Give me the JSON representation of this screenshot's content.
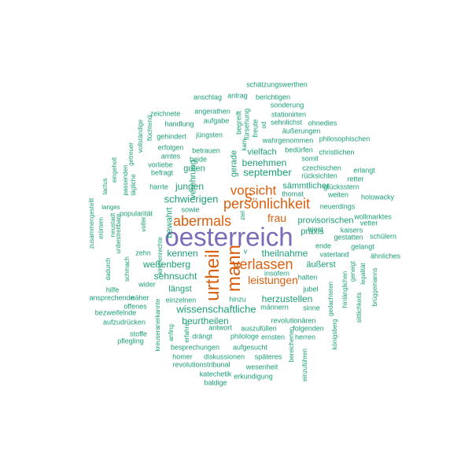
{
  "colors": {
    "main": "#7b6bb8",
    "orange": "#d95f0e",
    "teal": "#1b9e77",
    "background": "#ffffff"
  },
  "words": [
    {
      "text": "oesterreich",
      "color": "main"
    },
    {
      "text": "urtheil",
      "color": "orange"
    },
    {
      "text": "mann",
      "color": "orange"
    },
    {
      "text": "verlassen",
      "color": "orange"
    },
    {
      "text": "abermals",
      "color": "orange"
    },
    {
      "text": "persönlichkeit",
      "color": "orange"
    },
    {
      "text": "vorsicht",
      "color": "orange"
    },
    {
      "text": "s",
      "color": "orange"
    },
    {
      "text": "leistungen",
      "color": "orange"
    },
    {
      "text": "frau",
      "color": "orange"
    },
    {
      "text": "schwierigen",
      "color": "teal"
    },
    {
      "text": "september",
      "color": "teal"
    },
    {
      "text": "wissenschaftliche",
      "color": "teal"
    },
    {
      "text": "herzustellen",
      "color": "teal"
    },
    {
      "text": "beurtheilen",
      "color": "teal"
    },
    {
      "text": "sehnsucht",
      "color": "teal"
    },
    {
      "text": "kennen",
      "color": "teal"
    },
    {
      "text": "weßenberg",
      "color": "teal"
    },
    {
      "text": "theilnahme",
      "color": "teal"
    },
    {
      "text": "benehmen",
      "color": "teal"
    },
    {
      "text": "jungen",
      "color": "teal"
    },
    {
      "text": "guten",
      "color": "teal"
    },
    {
      "text": "verehrung",
      "color": "teal"
    },
    {
      "text": "längst",
      "color": "teal"
    },
    {
      "text": "provisorischen",
      "color": "teal"
    },
    {
      "text": "sämmtlicher",
      "color": "teal"
    },
    {
      "text": "praxis",
      "color": "teal"
    },
    {
      "text": "äußerst",
      "color": "teal"
    },
    {
      "text": "vielfach",
      "color": "teal"
    },
    {
      "text": "bewahrt",
      "color": "teal"
    },
    {
      "text": "gerade",
      "color": "teal"
    },
    {
      "text": "schätzungswerthen",
      "color": "teal"
    },
    {
      "text": "anschlag",
      "color": "teal"
    },
    {
      "text": "antrag",
      "color": "teal"
    },
    {
      "text": "berichtigen",
      "color": "teal"
    },
    {
      "text": "sonderung",
      "color": "teal"
    },
    {
      "text": "angerathen",
      "color": "teal"
    },
    {
      "text": "stationirten",
      "color": "teal"
    },
    {
      "text": "zeichnete",
      "color": "teal"
    },
    {
      "text": "aufgabe",
      "color": "teal"
    },
    {
      "text": "sehnlichst",
      "color": "teal"
    },
    {
      "text": "ohnedies",
      "color": "teal"
    },
    {
      "text": "handlung",
      "color": "teal"
    },
    {
      "text": "begreift",
      "color": "teal"
    },
    {
      "text": "fürsehung",
      "color": "teal"
    },
    {
      "text": "freute",
      "color": "teal"
    },
    {
      "text": "äußerungen",
      "color": "teal"
    },
    {
      "text": "gehindert",
      "color": "teal"
    },
    {
      "text": "jüngsten",
      "color": "teal"
    },
    {
      "text": "wahrgenommen",
      "color": "teal"
    },
    {
      "text": "philosophischen",
      "color": "teal"
    },
    {
      "text": "erfolgen",
      "color": "teal"
    },
    {
      "text": "bedürfen",
      "color": "teal"
    },
    {
      "text": "christlichen",
      "color": "teal"
    },
    {
      "text": "amtes",
      "color": "teal"
    },
    {
      "text": "betrauen",
      "color": "teal"
    },
    {
      "text": "somit",
      "color": "teal"
    },
    {
      "text": "vorliebe",
      "color": "teal"
    },
    {
      "text": "beide",
      "color": "teal"
    },
    {
      "text": "czechischen",
      "color": "teal"
    },
    {
      "text": "erlangt",
      "color": "teal"
    },
    {
      "text": "befragt",
      "color": "teal"
    },
    {
      "text": "rücksichten",
      "color": "teal"
    },
    {
      "text": "retter",
      "color": "teal"
    },
    {
      "text": "glücksstern",
      "color": "teal"
    },
    {
      "text": "harrte",
      "color": "teal"
    },
    {
      "text": "thomat",
      "color": "teal"
    },
    {
      "text": "weiten",
      "color": "teal"
    },
    {
      "text": "holowacky",
      "color": "teal"
    },
    {
      "text": "sowie",
      "color": "teal"
    },
    {
      "text": "neuerdings",
      "color": "teal"
    },
    {
      "text": "popularität",
      "color": "teal"
    },
    {
      "text": "wollmarktes",
      "color": "teal"
    },
    {
      "text": "vetter",
      "color": "teal"
    },
    {
      "text": "triest",
      "color": "teal"
    },
    {
      "text": "kaisers",
      "color": "teal"
    },
    {
      "text": "gestatten",
      "color": "teal"
    },
    {
      "text": "schülern",
      "color": "teal"
    },
    {
      "text": "ende",
      "color": "teal"
    },
    {
      "text": "gelangt",
      "color": "teal"
    },
    {
      "text": "zehn",
      "color": "teal"
    },
    {
      "text": "v",
      "color": "teal"
    },
    {
      "text": "vaterland",
      "color": "teal"
    },
    {
      "text": "ähnliches",
      "color": "teal"
    },
    {
      "text": "wider",
      "color": "teal"
    },
    {
      "text": "halten",
      "color": "teal"
    },
    {
      "text": "einzelnen",
      "color": "teal"
    },
    {
      "text": "hinzu",
      "color": "teal"
    },
    {
      "text": "jubel",
      "color": "teal"
    },
    {
      "text": "ansprechende",
      "color": "teal"
    },
    {
      "text": "näher",
      "color": "teal"
    },
    {
      "text": "hilfe",
      "color": "teal"
    },
    {
      "text": "offenes",
      "color": "teal"
    },
    {
      "text": "bezweifelnde",
      "color": "teal"
    },
    {
      "text": "männern",
      "color": "teal"
    },
    {
      "text": "sinne",
      "color": "teal"
    },
    {
      "text": "revolutionären",
      "color": "teal"
    },
    {
      "text": "aufzudrücken",
      "color": "teal"
    },
    {
      "text": "stoffe",
      "color": "teal"
    },
    {
      "text": "pflegling",
      "color": "teal"
    },
    {
      "text": "drängt",
      "color": "teal"
    },
    {
      "text": "philologe",
      "color": "teal"
    },
    {
      "text": "ernsten",
      "color": "teal"
    },
    {
      "text": "herren",
      "color": "teal"
    },
    {
      "text": "antwort",
      "color": "teal"
    },
    {
      "text": "auszufüllen",
      "color": "teal"
    },
    {
      "text": "folgenden",
      "color": "teal"
    },
    {
      "text": "besprechungen",
      "color": "teal"
    },
    {
      "text": "aufgesucht",
      "color": "teal"
    },
    {
      "text": "homer",
      "color": "teal"
    },
    {
      "text": "diskussionen",
      "color": "teal"
    },
    {
      "text": "späteres",
      "color": "teal"
    },
    {
      "text": "revolutionstribunal",
      "color": "teal"
    },
    {
      "text": "wesenheit",
      "color": "teal"
    },
    {
      "text": "katechetik",
      "color": "teal"
    },
    {
      "text": "erkundigung",
      "color": "teal"
    },
    {
      "text": "baldige",
      "color": "teal"
    },
    {
      "text": "insofern",
      "color": "teal"
    },
    {
      "text": "vollständige",
      "color": "teal"
    },
    {
      "text": "flüchtend",
      "color": "teal"
    },
    {
      "text": "eingeholt",
      "color": "teal"
    },
    {
      "text": "getreuer",
      "color": "teal"
    },
    {
      "text": "passenden",
      "color": "teal"
    },
    {
      "text": "tägliche",
      "color": "teal"
    },
    {
      "text": "tactus",
      "color": "teal"
    },
    {
      "text": "zusammengestellt",
      "color": "teal"
    },
    {
      "text": "langes",
      "color": "teal"
    },
    {
      "text": "erörtern",
      "color": "teal"
    },
    {
      "text": "neustadt",
      "color": "teal"
    },
    {
      "text": "unbestreitbare",
      "color": "teal"
    },
    {
      "text": "dadurch",
      "color": "teal"
    },
    {
      "text": "schmach",
      "color": "teal"
    },
    {
      "text": "voller",
      "color": "teal"
    },
    {
      "text": "kirchenrechte",
      "color": "teal"
    },
    {
      "text": "kreuseranerkannte",
      "color": "teal"
    },
    {
      "text": "anfing",
      "color": "teal"
    },
    {
      "text": "erfahre",
      "color": "teal"
    },
    {
      "text": "gedachteten",
      "color": "teal"
    },
    {
      "text": "königsberg",
      "color": "teal"
    },
    {
      "text": "hinlänglichen",
      "color": "teal"
    },
    {
      "text": "geneigt",
      "color": "teal"
    },
    {
      "text": "legalität",
      "color": "teal"
    },
    {
      "text": "sittlichkeits",
      "color": "teal"
    },
    {
      "text": "brüggemanns",
      "color": "teal"
    },
    {
      "text": "bereicherten",
      "color": "teal"
    },
    {
      "text": "einzuführen",
      "color": "teal"
    },
    {
      "text": "kam",
      "color": "teal"
    },
    {
      "text": "od",
      "color": "teal"
    },
    {
      "text": "ziel",
      "color": "teal"
    }
  ]
}
